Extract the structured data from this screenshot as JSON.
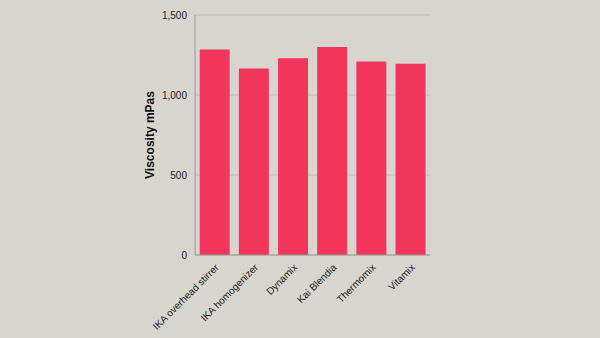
{
  "chart_data": {
    "type": "bar",
    "y_label": "Viscosity mPas",
    "categories": [
      "IKA overhead stirrer",
      "IKA homogenizer",
      "Dynamix",
      "Kai Blendia",
      "Thermomix",
      "Vitamix"
    ],
    "values": [
      1285,
      1165,
      1230,
      1300,
      1210,
      1195
    ],
    "color": "#f2355b",
    "ylim": [
      0,
      1500
    ],
    "yticks": [
      0,
      500,
      {
        "value": 1000,
        "label": "1,000"
      },
      {
        "value": 1500,
        "label": "1,500"
      }
    ],
    "grid": true
  }
}
